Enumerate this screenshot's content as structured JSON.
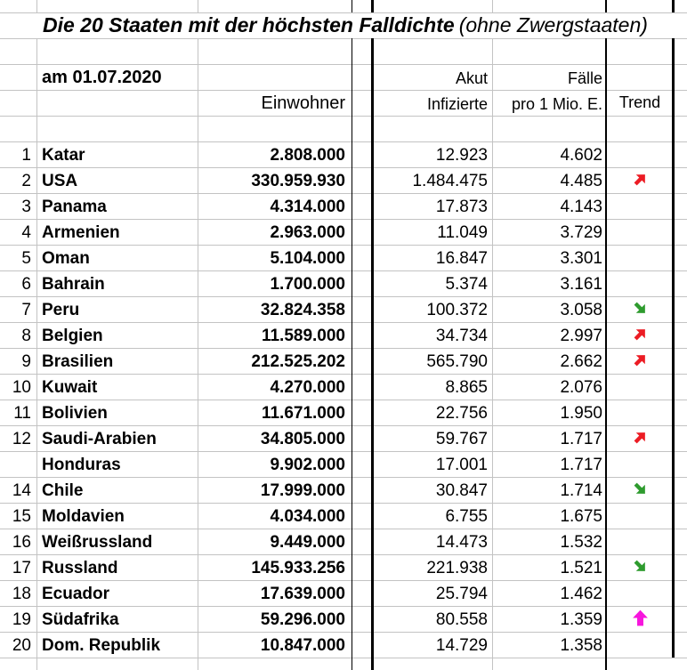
{
  "title": {
    "main": "Die 20 Staaten mit der höchsten Falldichte",
    "suffix": "(ohne Zwergstaaten)"
  },
  "header": {
    "date_label": "am 01.07.2020",
    "col_einwohner": "Einwohner",
    "col_akut_line1": "Akut",
    "col_akut_line2": "Infizierte",
    "col_faelle_line1": "Fälle",
    "col_faelle_line2": "pro 1 Mio. E.",
    "col_trend": "Trend"
  },
  "colors": {
    "gridline": "#c3c3c3",
    "border": "#000000",
    "trend_up": "#ec1c24",
    "trend_down": "#2e9b2e",
    "trend_surge": "#f715dd"
  },
  "rows": [
    {
      "rank": "1",
      "country": "Katar",
      "einwohner": "2.808.000",
      "akut": "12.923",
      "pro_mio": "4.602",
      "trend": ""
    },
    {
      "rank": "2",
      "country": "USA",
      "einwohner": "330.959.930",
      "akut": "1.484.475",
      "pro_mio": "4.485",
      "trend": "up"
    },
    {
      "rank": "3",
      "country": "Panama",
      "einwohner": "4.314.000",
      "akut": "17.873",
      "pro_mio": "4.143",
      "trend": ""
    },
    {
      "rank": "4",
      "country": "Armenien",
      "einwohner": "2.963.000",
      "akut": "11.049",
      "pro_mio": "3.729",
      "trend": ""
    },
    {
      "rank": "5",
      "country": "Oman",
      "einwohner": "5.104.000",
      "akut": "16.847",
      "pro_mio": "3.301",
      "trend": ""
    },
    {
      "rank": "6",
      "country": "Bahrain",
      "einwohner": "1.700.000",
      "akut": "5.374",
      "pro_mio": "3.161",
      "trend": ""
    },
    {
      "rank": "7",
      "country": "Peru",
      "einwohner": "32.824.358",
      "akut": "100.372",
      "pro_mio": "3.058",
      "trend": "down"
    },
    {
      "rank": "8",
      "country": "Belgien",
      "einwohner": "11.589.000",
      "akut": "34.734",
      "pro_mio": "2.997",
      "trend": "up"
    },
    {
      "rank": "9",
      "country": "Brasilien",
      "einwohner": "212.525.202",
      "akut": "565.790",
      "pro_mio": "2.662",
      "trend": "up"
    },
    {
      "rank": "10",
      "country": "Kuwait",
      "einwohner": "4.270.000",
      "akut": "8.865",
      "pro_mio": "2.076",
      "trend": ""
    },
    {
      "rank": "11",
      "country": "Bolivien",
      "einwohner": "11.671.000",
      "akut": "22.756",
      "pro_mio": "1.950",
      "trend": ""
    },
    {
      "rank": "12",
      "country": "Saudi-Arabien",
      "einwohner": "34.805.000",
      "akut": "59.767",
      "pro_mio": "1.717",
      "trend": "up"
    },
    {
      "rank": "",
      "country": "Honduras",
      "einwohner": "9.902.000",
      "akut": "17.001",
      "pro_mio": "1.717",
      "trend": ""
    },
    {
      "rank": "14",
      "country": "Chile",
      "einwohner": "17.999.000",
      "akut": "30.847",
      "pro_mio": "1.714",
      "trend": "down"
    },
    {
      "rank": "15",
      "country": "Moldavien",
      "einwohner": "4.034.000",
      "akut": "6.755",
      "pro_mio": "1.675",
      "trend": ""
    },
    {
      "rank": "16",
      "country": "Weißrussland",
      "einwohner": "9.449.000",
      "akut": "14.473",
      "pro_mio": "1.532",
      "trend": ""
    },
    {
      "rank": "17",
      "country": "Russland",
      "einwohner": "145.933.256",
      "akut": "221.938",
      "pro_mio": "1.521",
      "trend": "down"
    },
    {
      "rank": "18",
      "country": "Ecuador",
      "einwohner": "17.639.000",
      "akut": "25.794",
      "pro_mio": "1.462",
      "trend": ""
    },
    {
      "rank": "19",
      "country": "Südafrika",
      "einwohner": "59.296.000",
      "akut": "80.558",
      "pro_mio": "1.359",
      "trend": "surge"
    },
    {
      "rank": "20",
      "country": "Dom. Republik",
      "einwohner": "10.847.000",
      "akut": "14.729",
      "pro_mio": "1.358",
      "trend": ""
    }
  ]
}
